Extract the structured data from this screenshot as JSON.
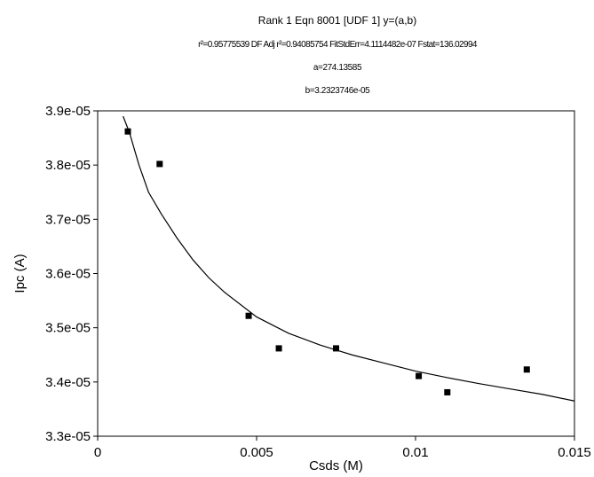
{
  "header": {
    "line1": "Rank 1  Eqn 8001  [UDF 1] y=(a,b)",
    "line2": "r²=0.95775539 DF Adj r²=0.94085754 FitStdErr=4.1114482e-07 Fstat=136.02994",
    "line3": "a=274.13585",
    "line4": "b=3.2323746e-05"
  },
  "chart_data": {
    "type": "scatter",
    "xlabel": "Csds (M)",
    "ylabel": "Ipc (A)",
    "xlim": [
      0,
      0.015
    ],
    "ylim": [
      3.3e-05,
      3.9e-05
    ],
    "x_ticks": [
      0,
      0.005,
      0.01,
      0.015
    ],
    "x_tick_labels": [
      "0",
      "0.005",
      "0.01",
      "0.015"
    ],
    "y_ticks": [
      3.3e-05,
      3.4e-05,
      3.5e-05,
      3.6e-05,
      3.7e-05,
      3.8e-05,
      3.9e-05
    ],
    "y_tick_labels": [
      "3.3e-05",
      "3.4e-05",
      "3.5e-05",
      "3.6e-05",
      "3.7e-05",
      "3.8e-05",
      "3.9e-05"
    ],
    "grid": false,
    "series": [
      {
        "kind": "points",
        "marker": "square",
        "x": [
          0.00095,
          0.00195,
          0.00475,
          0.0057,
          0.0075,
          0.0101,
          0.011,
          0.0135
        ],
        "y": [
          3.862e-05,
          3.802e-05,
          3.522e-05,
          3.462e-05,
          3.462e-05,
          3.411e-05,
          3.381e-05,
          3.423e-05
        ]
      },
      {
        "kind": "fitted-curve",
        "x": [
          0.0008,
          0.001,
          0.0013,
          0.0016,
          0.002,
          0.0025,
          0.003,
          0.0035,
          0.004,
          0.005,
          0.006,
          0.007,
          0.008,
          0.009,
          0.01,
          0.011,
          0.012,
          0.013,
          0.014,
          0.015
        ],
        "y": [
          3.89e-05,
          3.86e-05,
          3.8e-05,
          3.75e-05,
          3.71e-05,
          3.665e-05,
          3.625e-05,
          3.592e-05,
          3.565e-05,
          3.52e-05,
          3.49e-05,
          3.468e-05,
          3.45e-05,
          3.435e-05,
          3.42e-05,
          3.408e-05,
          3.397e-05,
          3.387e-05,
          3.377e-05,
          3.365e-05
        ]
      }
    ]
  }
}
